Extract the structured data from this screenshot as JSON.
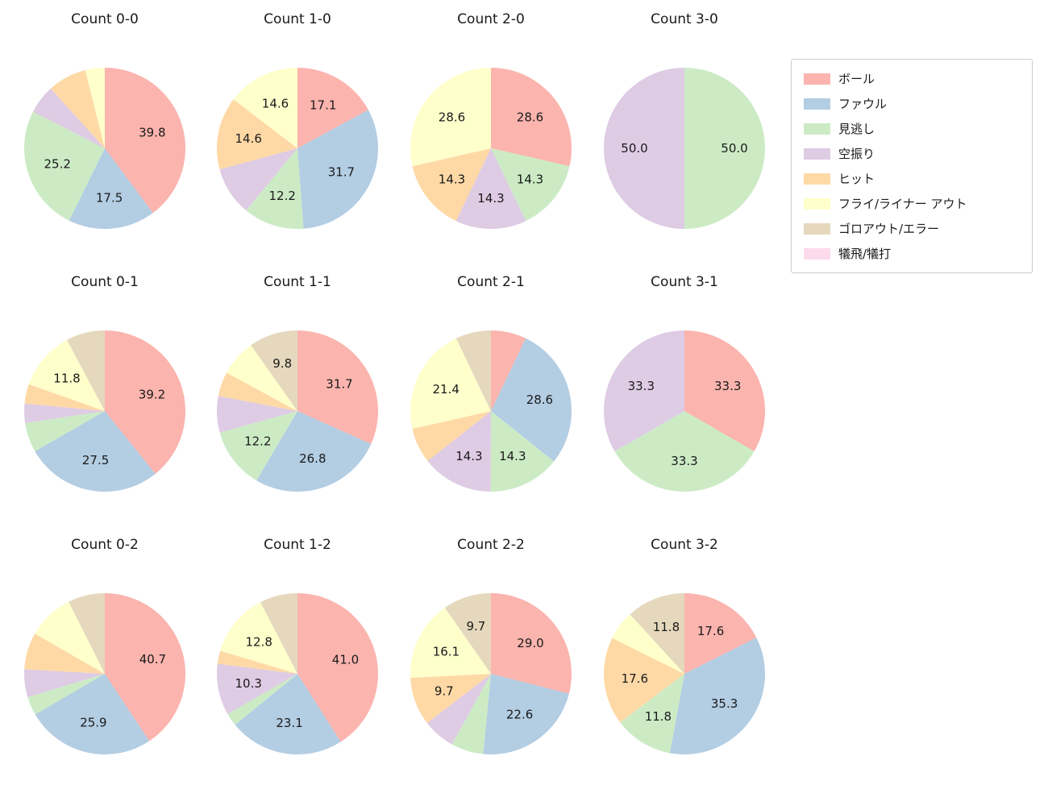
{
  "figure": {
    "background": "#ffffff",
    "text_color": "#1a1a1a"
  },
  "legend": {
    "items": [
      {
        "label": "ボール",
        "color": "#fbb4ae"
      },
      {
        "label": "ファウル",
        "color": "#b3cde3"
      },
      {
        "label": "見逃し",
        "color": "#ccebc5"
      },
      {
        "label": "空振り",
        "color": "#decbe4"
      },
      {
        "label": "ヒット",
        "color": "#fed9a6"
      },
      {
        "label": "フライ/ライナー アウト",
        "color": "#ffffcc"
      },
      {
        "label": "ゴロアウト/エラー",
        "color": "#e5d8bd"
      },
      {
        "label": "犠飛/犠打",
        "color": "#fddaec"
      }
    ]
  },
  "chart_data": {
    "type": "pie",
    "categories": [
      "ボール",
      "ファウル",
      "見逃し",
      "空振り",
      "ヒット",
      "フライ/ライナー アウト",
      "ゴロアウト/エラー",
      "犠飛/犠打"
    ],
    "colors": [
      "#fbb4ae",
      "#b3cde3",
      "#ccebc5",
      "#decbe4",
      "#fed9a6",
      "#ffffcc",
      "#e5d8bd",
      "#fddaec"
    ],
    "start_angle_deg": 90,
    "direction": "clockwise",
    "units": "percent",
    "layout": {
      "grid": "3x4",
      "legend_position": "upper right",
      "gridlines": "off"
    },
    "charts": [
      {
        "title": "Count 0-0",
        "values": [
          39.8,
          17.5,
          25.2,
          5.8,
          7.8,
          3.9,
          0,
          0
        ],
        "pct_labels": [
          "39.8",
          "17.5",
          "25.2",
          "",
          "",
          "",
          "",
          ""
        ]
      },
      {
        "title": "Count 1-0",
        "values": [
          17.1,
          31.7,
          12.2,
          9.8,
          14.6,
          14.6,
          0,
          0
        ],
        "pct_labels": [
          "17.1",
          "31.7",
          "12.2",
          "",
          "14.6",
          "14.6",
          "",
          ""
        ]
      },
      {
        "title": "Count 2-0",
        "values": [
          28.6,
          0,
          14.3,
          14.3,
          14.3,
          28.6,
          0,
          0
        ],
        "pct_labels": [
          "28.6",
          "",
          "14.3",
          "14.3",
          "14.3",
          "28.6",
          "",
          ""
        ]
      },
      {
        "title": "Count 3-0",
        "values": [
          0,
          0,
          50.0,
          50.0,
          0,
          0,
          0,
          0
        ],
        "pct_labels": [
          "",
          "",
          "50.0",
          "50.0",
          "",
          "",
          "",
          ""
        ]
      },
      {
        "title": "Count 0-1",
        "values": [
          39.2,
          27.5,
          5.9,
          3.9,
          3.9,
          11.8,
          7.8,
          0
        ],
        "pct_labels": [
          "39.2",
          "27.5",
          "",
          "",
          "",
          "11.8",
          "",
          ""
        ]
      },
      {
        "title": "Count 1-1",
        "values": [
          31.7,
          26.8,
          12.2,
          7.3,
          4.9,
          7.3,
          9.8,
          0
        ],
        "pct_labels": [
          "31.7",
          "26.8",
          "12.2",
          "",
          "",
          "",
          "9.8",
          ""
        ]
      },
      {
        "title": "Count 2-1",
        "values": [
          7.1,
          28.6,
          14.3,
          14.3,
          7.1,
          21.4,
          7.1,
          0
        ],
        "pct_labels": [
          "",
          "28.6",
          "14.3",
          "14.3",
          "",
          "21.4",
          "",
          ""
        ]
      },
      {
        "title": "Count 3-1",
        "values": [
          33.3,
          0,
          33.3,
          33.3,
          0,
          0,
          0,
          0
        ],
        "pct_labels": [
          "33.3",
          "",
          "33.3",
          "33.3",
          "",
          "",
          "",
          ""
        ]
      },
      {
        "title": "Count 0-2",
        "values": [
          40.7,
          25.9,
          3.7,
          5.6,
          7.4,
          9.3,
          7.4,
          0
        ],
        "pct_labels": [
          "40.7",
          "25.9",
          "",
          "",
          "",
          "",
          "",
          ""
        ]
      },
      {
        "title": "Count 1-2",
        "values": [
          41.0,
          23.1,
          2.6,
          10.3,
          2.6,
          12.8,
          7.6,
          0
        ],
        "pct_labels": [
          "41.0",
          "23.1",
          "",
          "10.3",
          "",
          "12.8",
          "",
          ""
        ]
      },
      {
        "title": "Count 2-2",
        "values": [
          29.0,
          22.6,
          6.5,
          6.5,
          9.7,
          16.1,
          9.7,
          0
        ],
        "pct_labels": [
          "29.0",
          "22.6",
          "",
          "",
          "9.7",
          "16.1",
          "9.7",
          ""
        ]
      },
      {
        "title": "Count 3-2",
        "values": [
          17.6,
          35.3,
          11.8,
          0,
          17.6,
          5.9,
          11.8,
          0
        ],
        "pct_labels": [
          "17.6",
          "35.3",
          "11.8",
          "",
          "17.6",
          "",
          "11.8",
          ""
        ]
      }
    ]
  }
}
